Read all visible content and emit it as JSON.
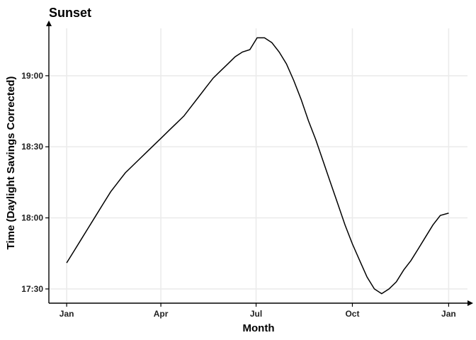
{
  "chart_data": {
    "type": "line",
    "title": "Sunset",
    "xlabel": "Month",
    "ylabel": "Time (Daylight Savings Corrected)",
    "x_tick_labels": [
      "Jan",
      "Apr",
      "Jul",
      "Oct",
      "Jan"
    ],
    "y_tick_labels": [
      "17:30",
      "18:00",
      "18:30",
      "19:00"
    ],
    "x_ticks_day_of_year": [
      1,
      91,
      182,
      274,
      366
    ],
    "y_ticks_minutes": [
      1050,
      1080,
      1110,
      1140
    ],
    "xlim_day_of_year": [
      -16,
      384
    ],
    "ylim_minutes": [
      1044,
      1160
    ],
    "grid": true,
    "legend": "none",
    "series": [
      {
        "x_day_of_year": [
          1,
          8,
          15,
          22,
          29,
          36,
          43,
          50,
          57,
          64,
          71,
          78,
          85,
          92,
          99,
          106,
          113,
          120,
          127,
          134,
          141,
          148,
          155,
          162,
          169,
          176,
          183,
          190,
          197,
          204,
          211,
          218,
          225,
          232,
          239,
          246,
          253,
          260,
          267,
          274,
          281,
          288,
          295,
          302,
          309,
          316,
          323,
          330,
          337,
          344,
          351,
          358,
          366
        ],
        "y_minutes": [
          1061,
          1066,
          1071,
          1076,
          1081,
          1086,
          1091,
          1095,
          1099,
          1102,
          1105,
          1108,
          1111,
          1114,
          1117,
          1120,
          1123,
          1127,
          1131,
          1135,
          1139,
          1142,
          1145,
          1148,
          1150,
          1151,
          1156,
          1156,
          1154,
          1150,
          1145,
          1138,
          1130,
          1121,
          1113,
          1104,
          1095,
          1086,
          1077,
          1069,
          1062,
          1055,
          1050,
          1048,
          1050,
          1053,
          1058,
          1062,
          1067,
          1072,
          1077,
          1081,
          1082
        ]
      }
    ]
  }
}
